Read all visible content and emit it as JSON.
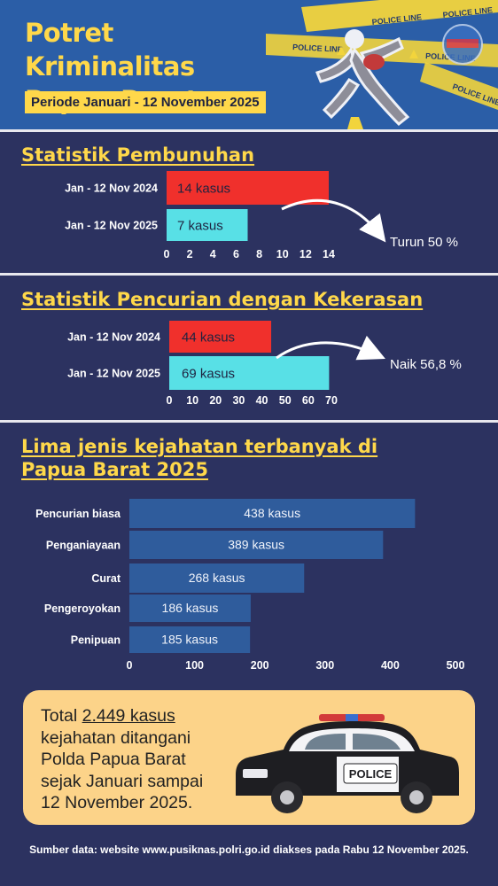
{
  "header": {
    "title_line1": "Potret Kriminalitas",
    "title_line2": "Papua Barat",
    "period": "Periode Januari - 12 November 2025",
    "tape_text": "POLICE LINE"
  },
  "colors": {
    "background": "#2c3260",
    "header": "#2b5ea7",
    "accent_yellow": "#ffd84a",
    "bar_2024": "#f0302c",
    "bar_2025": "#58e0e6",
    "bar_top5": "#2f5c9c",
    "total_box": "#fcd389"
  },
  "chart_data": [
    {
      "type": "bar",
      "orientation": "horizontal",
      "title": "Statistik Pembunuhan",
      "categories": [
        "Jan - 12 Nov 2024",
        "Jan - 12 Nov 2025"
      ],
      "values": [
        14,
        7
      ],
      "value_labels": [
        "14 kasus",
        "7 kasus"
      ],
      "xlim": [
        0,
        14
      ],
      "ticks": [
        0,
        2,
        4,
        6,
        8,
        10,
        12,
        14
      ],
      "annotation": "Turun 50 %",
      "grid": false
    },
    {
      "type": "bar",
      "orientation": "horizontal",
      "title": "Statistik Pencurian dengan Kekerasan",
      "categories": [
        "Jan - 12 Nov 2024",
        "Jan - 12 Nov 2025"
      ],
      "values": [
        44,
        69
      ],
      "value_labels": [
        "44 kasus",
        "69 kasus"
      ],
      "xlim": [
        0,
        70
      ],
      "ticks": [
        0,
        10,
        20,
        30,
        40,
        50,
        60,
        70
      ],
      "annotation": "Naik 56,8 %",
      "grid": false
    },
    {
      "type": "bar",
      "orientation": "horizontal",
      "title": "Lima jenis kejahatan terbanyak di Papua Barat 2025",
      "categories": [
        "Pencurian biasa",
        "Penganiayaan",
        "Curat",
        "Pengeroyokan",
        "Penipuan"
      ],
      "values": [
        438,
        389,
        268,
        186,
        185
      ],
      "value_labels": [
        "438 kasus",
        "389 kasus",
        "268 kasus",
        "186 kasus",
        "185 kasus"
      ],
      "xlim": [
        0,
        500
      ],
      "ticks": [
        0,
        100,
        200,
        300,
        400,
        500
      ],
      "grid": false
    }
  ],
  "total": {
    "prefix": "Total ",
    "highlight": "2.449 kasus",
    "line2": "kejahatan ditangani",
    "line3": "Polda Papua Barat",
    "line4": "sejak Januari sampai",
    "line5": "12 November 2025.",
    "car_label": "POLICE"
  },
  "source": "Sumber data: website www.pusiknas.polri.go.id diakses pada Rabu 12 November 2025."
}
